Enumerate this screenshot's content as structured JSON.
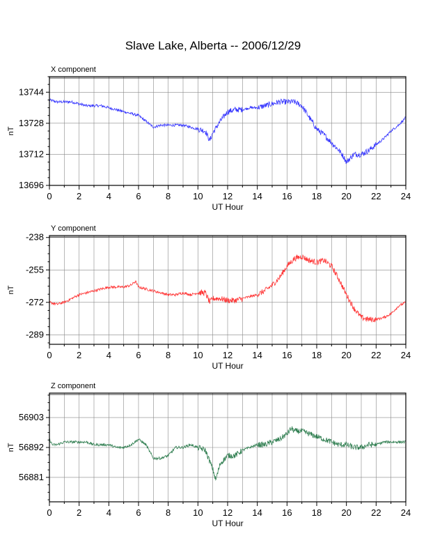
{
  "title": "Slave Lake, Alberta -- 2006/12/29",
  "colors": {
    "X": "#3333ff",
    "Y": "#ff3333",
    "Z": "#2e7d4f",
    "grid": "#888888"
  },
  "chart_data": [
    {
      "type": "line",
      "panel_label": "X component",
      "xlabel": "UT Hour",
      "ylabel": "nT",
      "xlim": [
        0,
        24
      ],
      "ylim": [
        13696,
        13752
      ],
      "xticks": [
        0,
        2,
        4,
        6,
        8,
        10,
        12,
        14,
        16,
        18,
        20,
        22,
        24
      ],
      "yticks": [
        13696,
        13712,
        13728,
        13744
      ],
      "grid": true,
      "series": [
        {
          "x": [
            0,
            0.5,
            1,
            1.5,
            2,
            2.5,
            3,
            3.5,
            4,
            4.5,
            5,
            5.5,
            6,
            6.5,
            7,
            7.5,
            8,
            8.5,
            9,
            9.5,
            10,
            10.5,
            10.8,
            11,
            11.5,
            12,
            12.5,
            13,
            13.5,
            14,
            14.5,
            15,
            15.5,
            16,
            16.5,
            17,
            17.5,
            18,
            18.5,
            19,
            19.5,
            19.8,
            20,
            20.5,
            21,
            21.5,
            22,
            22.5,
            23,
            23.5,
            24
          ],
          "values": [
            13740,
            13739,
            13739,
            13739,
            13738,
            13737,
            13737,
            13737,
            13736,
            13735,
            13734,
            13733,
            13732,
            13729,
            13726,
            13727,
            13727,
            13727,
            13727,
            13726,
            13725,
            13724,
            13719,
            13723,
            13729,
            13734,
            13735,
            13735,
            13736,
            13736,
            13737,
            13738,
            13739,
            13739,
            13739,
            13737,
            13731,
            13725,
            13722,
            13718,
            13714,
            13711,
            13708,
            13712,
            13712,
            13714,
            13717,
            13720,
            13724,
            13727,
            13731
          ]
        }
      ]
    },
    {
      "type": "line",
      "panel_label": "Y component",
      "xlabel": "UT Hour",
      "ylabel": "nT",
      "xlim": [
        0,
        24
      ],
      "ylim": [
        -294,
        -237
      ],
      "xticks": [
        0,
        2,
        4,
        6,
        8,
        10,
        12,
        14,
        16,
        18,
        20,
        22,
        24
      ],
      "yticks": [
        -238,
        -255,
        -272,
        -289
      ],
      "grid": true,
      "series": [
        {
          "x": [
            0,
            0.5,
            1,
            1.5,
            2,
            2.5,
            3,
            3.5,
            4,
            4.5,
            5,
            5.5,
            5.8,
            6,
            6.5,
            7,
            7.5,
            8,
            8.5,
            9,
            9.5,
            10,
            10.5,
            10.8,
            11,
            11.5,
            12,
            12.5,
            13,
            13.5,
            14,
            14.5,
            15,
            15.5,
            16,
            16.5,
            17,
            17.5,
            18,
            18.5,
            19,
            19.5,
            20,
            20.5,
            21,
            21.5,
            22,
            22.5,
            23,
            23.5,
            24
          ],
          "values": [
            -272,
            -273,
            -272,
            -270,
            -268,
            -267,
            -266,
            -265,
            -264,
            -264,
            -264,
            -263,
            -261,
            -264,
            -265,
            -266,
            -267,
            -268,
            -268,
            -267,
            -268,
            -267,
            -267,
            -272,
            -270,
            -270,
            -271,
            -271,
            -270,
            -269,
            -268,
            -266,
            -263,
            -259,
            -253,
            -249,
            -248,
            -250,
            -251,
            -250,
            -253,
            -260,
            -268,
            -275,
            -280,
            -281,
            -281,
            -280,
            -278,
            -274,
            -272
          ]
        }
      ]
    },
    {
      "type": "line",
      "panel_label": "Z component",
      "xlabel": "UT Hour",
      "ylabel": "nT",
      "xlim": [
        0,
        24
      ],
      "ylim": [
        56872,
        56912
      ],
      "xticks": [
        0,
        2,
        4,
        6,
        8,
        10,
        12,
        14,
        16,
        18,
        20,
        22,
        24
      ],
      "yticks": [
        56881,
        56892,
        56903
      ],
      "grid": true,
      "series": [
        {
          "x": [
            0,
            0.2,
            0.5,
            1,
            1.5,
            2,
            2.5,
            3,
            3.5,
            4,
            4.5,
            5,
            5.5,
            6,
            6.5,
            7,
            7.5,
            8,
            8.5,
            9,
            9.5,
            10,
            10.5,
            11,
            11.2,
            11.5,
            12,
            12.5,
            13,
            13.5,
            14,
            14.5,
            15,
            15.5,
            16,
            16.3,
            16.5,
            17,
            17.5,
            18,
            18.5,
            19,
            19.5,
            20,
            20.5,
            21,
            21.5,
            22,
            22.5,
            23,
            23.5,
            24
          ],
          "values": [
            56895,
            56893,
            56893,
            56894,
            56894,
            56894,
            56894,
            56893,
            56893,
            56893,
            56892,
            56892,
            56893,
            56895,
            56893,
            56888,
            56888,
            56889,
            56892,
            56892,
            56893,
            56892,
            56891,
            56884,
            56880,
            56886,
            56889,
            56889,
            56891,
            56892,
            56893,
            56893,
            56894,
            56895,
            56897,
            56899,
            56898,
            56898,
            56897,
            56896,
            56895,
            56894,
            56893,
            56893,
            56892,
            56892,
            56893,
            56893,
            56894,
            56894,
            56894,
            56894
          ]
        }
      ]
    }
  ]
}
